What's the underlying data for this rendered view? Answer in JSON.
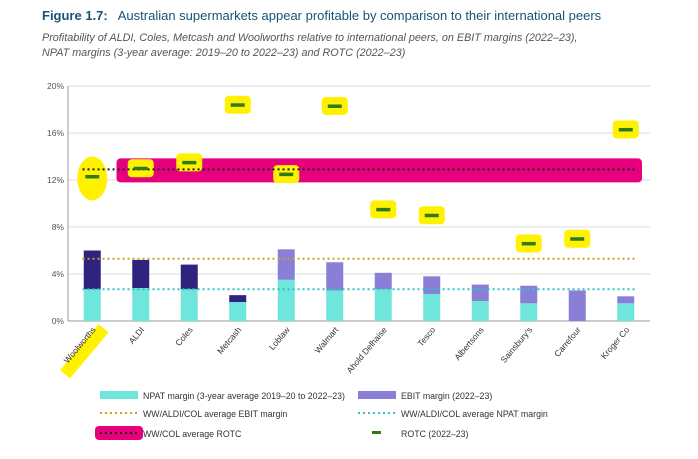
{
  "figure": {
    "number": "Figure 1.7:",
    "title": "Australian supermarkets appear profitable by comparison to their international peers",
    "subtitle_line1": "Profitability of ALDI, Coles, Metcash and Woolworths relative to international peers, on EBIT margins (2022–23),",
    "subtitle_line2": "NPAT margins (3-year average: 2019–20 to 2022–23) and ROTC (2022–23)"
  },
  "colors": {
    "npat": "#6ee6dc",
    "ebit_light": "#8a7fd6",
    "ebit_dark": "#2e2480",
    "rotc_marker": "#2f7a1a",
    "ebit_avg_line": "#c9a227",
    "npat_avg_line": "#2ec4c4",
    "rotc_avg_line": "#1a1a1a",
    "highlight_yellow": "#fff200",
    "highlight_magenta": "#e6007e"
  },
  "chart_data": {
    "type": "bar",
    "categories": [
      "Woolworths",
      "ALDI",
      "Coles",
      "Metcash",
      "Loblaw",
      "Walmart",
      "Ahold Delhaise",
      "Tesco",
      "Albertsons",
      "Sainsbury's",
      "Carrefour",
      "Kroger Co"
    ],
    "series": [
      {
        "name": "NPAT margin (3-year average 2019–20 to 2022–23)",
        "values": [
          2.7,
          2.8,
          2.7,
          1.6,
          3.5,
          2.6,
          2.7,
          2.3,
          1.7,
          1.5,
          0.0,
          1.5
        ]
      },
      {
        "name": "EBIT margin (2022–23)",
        "values": [
          6.0,
          5.2,
          4.8,
          2.2,
          6.1,
          5.0,
          4.1,
          3.8,
          3.1,
          3.0,
          2.6,
          2.1
        ]
      },
      {
        "name": "ROTC (2022–23)",
        "values": [
          12.3,
          13.0,
          13.5,
          18.4,
          12.5,
          18.3,
          9.5,
          9.0,
          null,
          6.6,
          7.0,
          16.3
        ]
      }
    ],
    "ebit_dark_categories": [
      "Woolworths",
      "ALDI",
      "Coles",
      "Metcash"
    ],
    "reference_lines": [
      {
        "name": "WW/ALDI/COL average EBIT margin",
        "value": 5.3,
        "style": "dotted"
      },
      {
        "name": "WW/ALDI/COL average NPAT margin",
        "value": 2.7,
        "style": "dotted"
      },
      {
        "name": "WW/COL average ROTC",
        "value": 12.9,
        "style": "dotted"
      }
    ],
    "ylim": [
      0,
      20
    ],
    "yticks": [
      "0%",
      "4%",
      "8%",
      "12%",
      "16%",
      "20%"
    ],
    "ytick_values": [
      0,
      4,
      8,
      12,
      16,
      20
    ],
    "grid": true,
    "legend_position": "bottom"
  },
  "legend": {
    "npat": "NPAT margin (3-year average 2019–20 to 2022–23)",
    "ebit": "EBIT margin (2022–23)",
    "ebit_avg": "WW/ALDI/COL average EBIT margin",
    "npat_avg": "WW/ALDI/COL average NPAT margin",
    "rotc_avg": "WW/COL average ROTC",
    "rotc": "ROTC (2022–23)"
  }
}
